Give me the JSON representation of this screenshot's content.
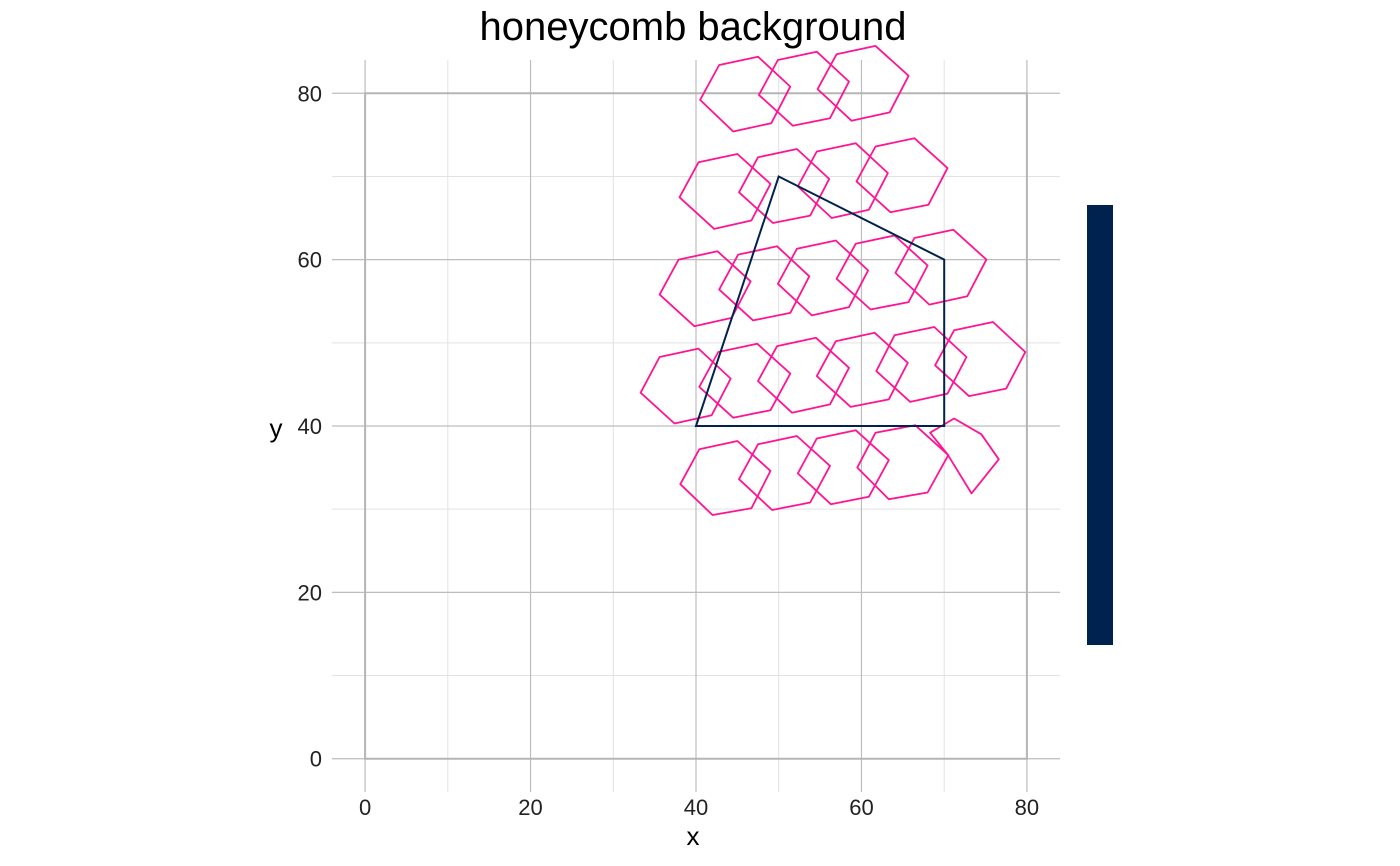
{
  "chart_data": {
    "type": "polygon",
    "title": "honeycomb background",
    "xlabel": "x",
    "ylabel": "y",
    "xlim": [
      -4,
      84
    ],
    "ylim": [
      -4,
      84
    ],
    "x_ticks": [
      0,
      20,
      40,
      60,
      80
    ],
    "y_ticks": [
      0,
      20,
      40,
      60,
      80
    ],
    "grid": true,
    "legend": "right",
    "colors": {
      "outline": "#00224E",
      "hexagons": "#FF1493",
      "legend_bar": "#00224E"
    },
    "frame": [
      [
        0,
        0
      ],
      [
        80,
        0
      ],
      [
        80,
        80
      ],
      [
        0,
        80
      ]
    ],
    "polygon": [
      [
        40,
        40
      ],
      [
        70,
        40
      ],
      [
        70,
        60
      ],
      [
        50,
        70
      ]
    ],
    "hexagons": [
      [
        [
          70.4,
          36.6
        ],
        [
          73.3,
          31.9
        ],
        [
          76.6,
          36.0
        ],
        [
          74.5,
          39.0
        ],
        [
          71.2,
          40.9
        ],
        [
          68.3,
          39.2
        ]
      ],
      [
        [
          63.3,
          31.2
        ],
        [
          68.0,
          32.0
        ],
        [
          70.5,
          36.5
        ],
        [
          66.5,
          40.1
        ],
        [
          61.7,
          39.2
        ],
        [
          59.5,
          35.0
        ]
      ],
      [
        [
          56.3,
          30.6
        ],
        [
          60.9,
          31.5
        ],
        [
          63.3,
          35.9
        ],
        [
          59.3,
          39.5
        ],
        [
          54.6,
          38.5
        ],
        [
          52.3,
          34.3
        ]
      ],
      [
        [
          49.2,
          29.9
        ],
        [
          53.8,
          30.8
        ],
        [
          56.2,
          35.2
        ],
        [
          52.2,
          38.8
        ],
        [
          47.5,
          37.8
        ],
        [
          45.2,
          33.6
        ]
      ],
      [
        [
          42.0,
          29.3
        ],
        [
          46.7,
          30.1
        ],
        [
          49.0,
          34.6
        ],
        [
          45.0,
          38.2
        ],
        [
          40.4,
          37.2
        ],
        [
          38.1,
          33.0
        ]
      ],
      [
        [
          73.0,
          43.6
        ],
        [
          77.5,
          44.5
        ],
        [
          79.8,
          48.9
        ],
        [
          75.9,
          52.5
        ],
        [
          71.2,
          51.5
        ],
        [
          68.9,
          47.3
        ]
      ],
      [
        [
          65.9,
          42.9
        ],
        [
          70.4,
          43.9
        ],
        [
          72.7,
          48.3
        ],
        [
          68.8,
          51.9
        ],
        [
          64.0,
          50.9
        ],
        [
          61.8,
          46.6
        ]
      ],
      [
        [
          58.7,
          42.3
        ],
        [
          63.3,
          43.2
        ],
        [
          65.6,
          47.6
        ],
        [
          61.6,
          51.2
        ],
        [
          56.9,
          50.2
        ],
        [
          54.6,
          46.0
        ]
      ],
      [
        [
          51.6,
          41.6
        ],
        [
          56.2,
          42.6
        ],
        [
          58.5,
          47.0
        ],
        [
          54.5,
          50.6
        ],
        [
          49.8,
          49.6
        ],
        [
          47.5,
          45.4
        ]
      ],
      [
        [
          44.5,
          41.0
        ],
        [
          49.0,
          41.9
        ],
        [
          51.4,
          46.3
        ],
        [
          47.4,
          49.9
        ],
        [
          42.7,
          48.9
        ],
        [
          40.4,
          44.7
        ]
      ],
      [
        [
          37.4,
          40.3
        ],
        [
          41.9,
          41.3
        ],
        [
          44.2,
          45.7
        ],
        [
          40.3,
          49.3
        ],
        [
          35.6,
          48.3
        ],
        [
          33.3,
          44.0
        ]
      ],
      [
        [
          68.2,
          54.6
        ],
        [
          72.8,
          55.6
        ],
        [
          75.1,
          60.0
        ],
        [
          71.1,
          63.6
        ],
        [
          66.4,
          62.6
        ],
        [
          64.1,
          58.4
        ]
      ],
      [
        [
          61.1,
          54.0
        ],
        [
          65.7,
          54.9
        ],
        [
          68.0,
          59.3
        ],
        [
          64.0,
          62.9
        ],
        [
          59.3,
          61.9
        ],
        [
          57.0,
          57.7
        ]
      ],
      [
        [
          54.0,
          53.3
        ],
        [
          58.5,
          54.3
        ],
        [
          60.8,
          58.7
        ],
        [
          56.9,
          62.3
        ],
        [
          52.2,
          61.3
        ],
        [
          49.9,
          57.1
        ]
      ],
      [
        [
          46.9,
          52.7
        ],
        [
          51.4,
          53.6
        ],
        [
          53.7,
          58.0
        ],
        [
          49.8,
          61.6
        ],
        [
          45.1,
          60.6
        ],
        [
          42.8,
          56.4
        ]
      ],
      [
        [
          39.8,
          52.0
        ],
        [
          44.3,
          53.0
        ],
        [
          46.6,
          57.4
        ],
        [
          42.6,
          61.0
        ],
        [
          37.9,
          60.0
        ],
        [
          35.6,
          55.8
        ]
      ],
      [
        [
          63.5,
          65.7
        ],
        [
          68.1,
          66.6
        ],
        [
          70.4,
          71.0
        ],
        [
          66.4,
          74.6
        ],
        [
          61.7,
          73.6
        ],
        [
          59.4,
          69.4
        ]
      ],
      [
        [
          56.4,
          65.0
        ],
        [
          60.9,
          66.0
        ],
        [
          63.2,
          70.4
        ],
        [
          59.3,
          74.0
        ],
        [
          54.6,
          73.0
        ],
        [
          52.3,
          68.8
        ]
      ],
      [
        [
          49.3,
          64.4
        ],
        [
          53.8,
          65.3
        ],
        [
          56.1,
          69.7
        ],
        [
          52.2,
          73.3
        ],
        [
          47.5,
          72.3
        ],
        [
          45.2,
          68.1
        ]
      ],
      [
        [
          42.2,
          63.7
        ],
        [
          46.7,
          64.7
        ],
        [
          49.0,
          69.1
        ],
        [
          45.0,
          72.7
        ],
        [
          40.3,
          71.7
        ],
        [
          38.0,
          67.5
        ]
      ],
      [
        [
          58.8,
          76.7
        ],
        [
          63.4,
          77.7
        ],
        [
          65.7,
          82.1
        ],
        [
          61.7,
          85.7
        ],
        [
          57.0,
          84.7
        ],
        [
          54.7,
          80.5
        ]
      ],
      [
        [
          51.7,
          76.1
        ],
        [
          56.2,
          77.0
        ],
        [
          58.5,
          81.4
        ],
        [
          54.6,
          85.0
        ],
        [
          49.9,
          84.0
        ],
        [
          47.6,
          79.8
        ]
      ],
      [
        [
          44.5,
          75.4
        ],
        [
          49.1,
          76.4
        ],
        [
          51.4,
          80.8
        ],
        [
          47.5,
          84.4
        ],
        [
          42.8,
          83.4
        ],
        [
          40.5,
          79.2
        ]
      ]
    ]
  }
}
